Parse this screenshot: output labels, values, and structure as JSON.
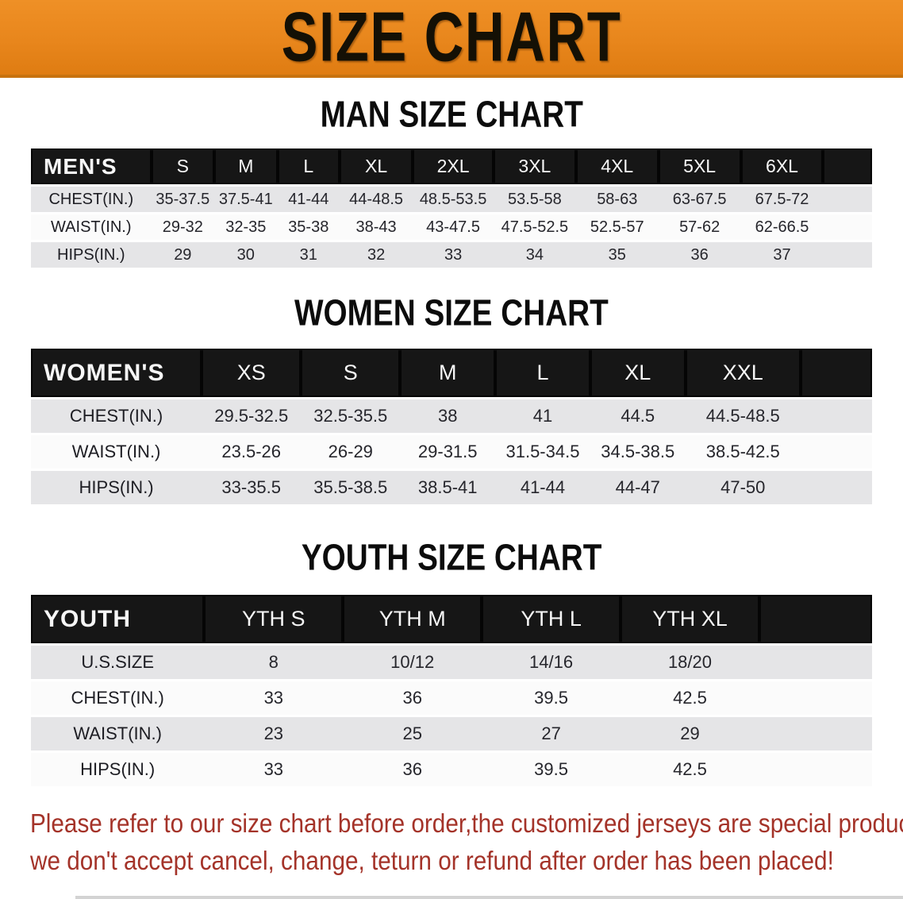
{
  "banner": {
    "title": "SIZE CHART",
    "bg_color": "#E8861C",
    "text_color": "#141005"
  },
  "sections": [
    {
      "title": "MAN SIZE CHART",
      "header_label": "MEN'S",
      "columns": [
        "S",
        "M",
        "L",
        "XL",
        "2XL",
        "3XL",
        "4XL",
        "5XL",
        "6XL"
      ],
      "rows": [
        {
          "label": "CHEST(IN.)",
          "values": [
            "35-37.5",
            "37.5-41",
            "41-44",
            "44-48.5",
            "48.5-53.5",
            "53.5-58",
            "58-63",
            "63-67.5",
            "67.5-72"
          ]
        },
        {
          "label": "WAIST(IN.)",
          "values": [
            "29-32",
            "32-35",
            "35-38",
            "38-43",
            "43-47.5",
            "47.5-52.5",
            "52.5-57",
            "57-62",
            "62-66.5"
          ]
        },
        {
          "label": "HIPS(IN.)",
          "values": [
            "29",
            "30",
            "31",
            "32",
            "33",
            "34",
            "35",
            "36",
            "37"
          ]
        }
      ]
    },
    {
      "title": "WOMEN SIZE CHART",
      "header_label": "WOMEN'S",
      "columns": [
        "XS",
        "S",
        "M",
        "L",
        "XL",
        "XXL"
      ],
      "rows": [
        {
          "label": "CHEST(IN.)",
          "values": [
            "29.5-32.5",
            "32.5-35.5",
            "38",
            "41",
            "44.5",
            "44.5-48.5"
          ]
        },
        {
          "label": "WAIST(IN.)",
          "values": [
            "23.5-26",
            "26-29",
            "29-31.5",
            "31.5-34.5",
            "34.5-38.5",
            "38.5-42.5"
          ]
        },
        {
          "label": "HIPS(IN.)",
          "values": [
            "33-35.5",
            "35.5-38.5",
            "38.5-41",
            "41-44",
            "44-47",
            "47-50"
          ]
        }
      ]
    },
    {
      "title": "YOUTH SIZE CHART",
      "header_label": "YOUTH",
      "columns": [
        "YTH S",
        "YTH M",
        "YTH L",
        "YTH XL"
      ],
      "rows": [
        {
          "label": "U.S.SIZE",
          "values": [
            "8",
            "10/12",
            "14/16",
            "18/20"
          ]
        },
        {
          "label": "CHEST(IN.)",
          "values": [
            "33",
            "36",
            "39.5",
            "42.5"
          ]
        },
        {
          "label": "WAIST(IN.)",
          "values": [
            "23",
            "25",
            "27",
            "29"
          ]
        },
        {
          "label": "HIPS(IN.)",
          "values": [
            "33",
            "36",
            "39.5",
            "42.5"
          ]
        }
      ]
    }
  ],
  "disclaimer": {
    "line1": "Please refer to our size chart before order,the customized jerseys are special products,",
    "line2": "we don't accept cancel, change, teturn or refund after order has been placed!",
    "color": "#A43329"
  },
  "colors": {
    "banner_orange": "#E8861C",
    "header_black": "#161616",
    "row_gray": "#E5E5E7",
    "row_white": "#FBFBFB",
    "disclaimer_red": "#A43329"
  }
}
